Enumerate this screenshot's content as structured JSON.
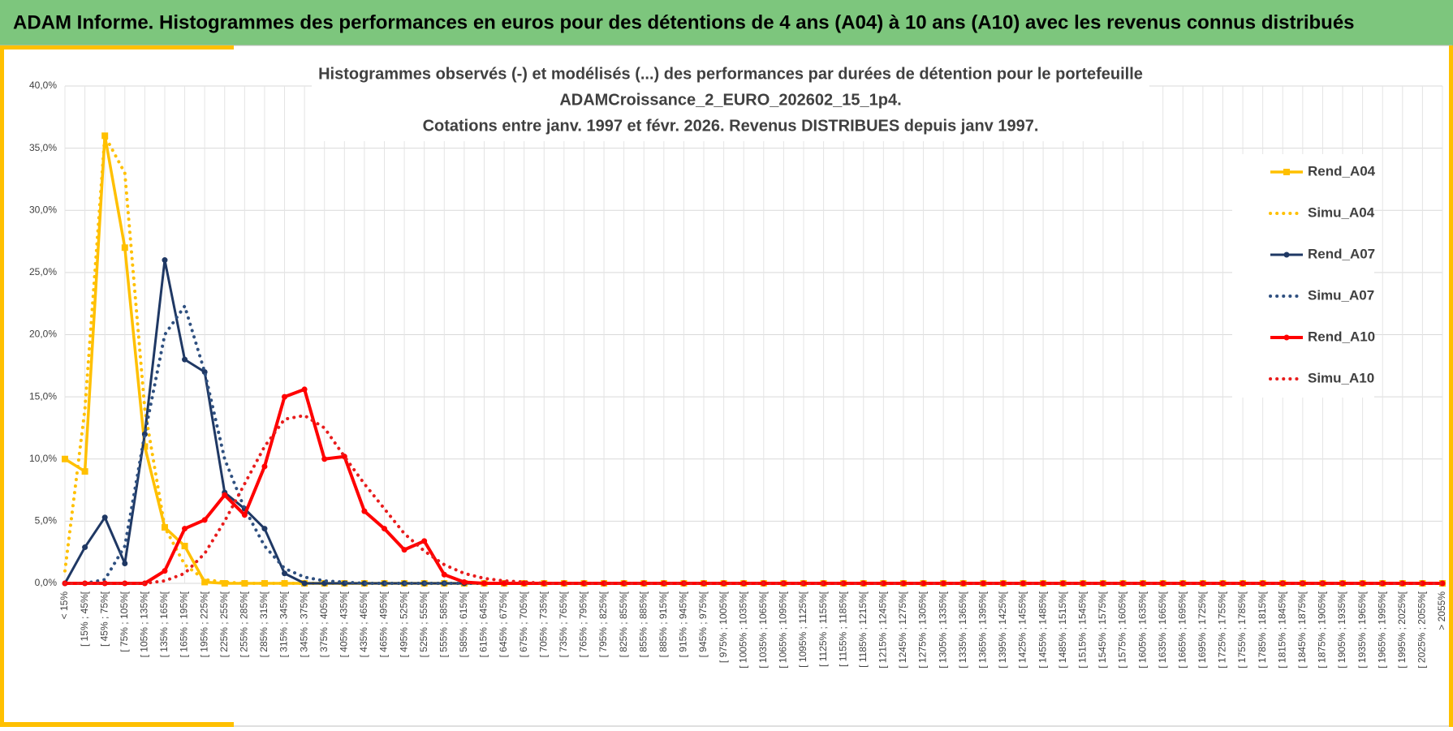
{
  "header": "ADAM Informe. Histogrammes des performances en euros pour des détentions de 4 ans (A04) à 10 ans (A10) avec les revenus connus distribués",
  "chart_data": {
    "type": "line",
    "title_lines": [
      "Histogrammes observés (-) et modélisés (...) des performances par durées de détention pour le portefeuille",
      "ADAMCroissance_2_EURO_202602_15_1p4.",
      "Cotations entre janv. 1997 et févr. 2026. Revenus DISTRIBUES depuis janv 1997."
    ],
    "categories": [
      "< 15%",
      "[ 15% ; 45%[",
      "[ 45% ; 75%[",
      "[ 75% ; 105%[",
      "[ 105% ; 135%[",
      "[ 135% ; 165%[",
      "[ 165% ; 195%[",
      "[ 195% ; 225%[",
      "[ 225% ; 255%[",
      "[ 255% ; 285%[",
      "[ 285% ; 315%[",
      "[ 315% ; 345%[",
      "[ 345% ; 375%[",
      "[ 375% ; 405%[",
      "[ 405% ; 435%[",
      "[ 435% ; 465%[",
      "[ 465% ; 495%[",
      "[ 495% ; 525%[",
      "[ 525% ; 555%[",
      "[ 555% ; 585%[",
      "[ 585% ; 615%[",
      "[ 615% ; 645%[",
      "[ 645% ; 675%[",
      "[ 675% ; 705%[",
      "[ 705% ; 735%[",
      "[ 735% ; 765%[",
      "[ 765% ; 795%[",
      "[ 795% ; 825%[",
      "[ 825% ; 855%[",
      "[ 855% ; 885%[",
      "[ 885% ; 915%[",
      "[ 915% ; 945%[",
      "[ 945% ; 975%[",
      "[ 975% ; 1005%[",
      "[ 1005% ; 1035%[",
      "[ 1035% ; 1065%[",
      "[ 1065% ; 1095%[",
      "[ 1095% ; 1125%[",
      "[ 1125% ; 1155%[",
      "[ 1155% ; 1185%[",
      "[ 1185% ; 1215%[",
      "[ 1215% ; 1245%[",
      "[ 1245% ; 1275%[",
      "[ 1275% ; 1305%[",
      "[ 1305% ; 1335%[",
      "[ 1335% ; 1365%[",
      "[ 1365% ; 1395%[",
      "[ 1395% ; 1425%[",
      "[ 1425% ; 1455%[",
      "[ 1455% ; 1485%[",
      "[ 1485% ; 1515%[",
      "[ 1515% ; 1545%[",
      "[ 1545% ; 1575%[",
      "[ 1575% ; 1605%[",
      "[ 1605% ; 1635%[",
      "[ 1635% ; 1665%[",
      "[ 1665% ; 1695%[",
      "[ 1695% ; 1725%[",
      "[ 1725% ; 1755%[",
      "[ 1755% ; 1785%[",
      "[ 1785% ; 1815%[",
      "[ 1815% ; 1845%[",
      "[ 1845% ; 1875%[",
      "[ 1875% ; 1905%[",
      "[ 1905% ; 1935%[",
      "[ 1935% ; 1965%[",
      "[ 1965% ; 1995%[",
      "[ 1995% ; 2025%[",
      "[ 2025% ; 2055%[",
      "> 2055%"
    ],
    "series": [
      {
        "name": "Rend_A04",
        "color": "#ffc000",
        "line_style": "solid",
        "line_width": 3.5,
        "marker": "square",
        "values": [
          10,
          9,
          36,
          27,
          11,
          4.5,
          3,
          0.1,
          0,
          0,
          0,
          0,
          0,
          0,
          0,
          0,
          0,
          0,
          0,
          0,
          0,
          0,
          0,
          0,
          0,
          0,
          0,
          0,
          0,
          0,
          0,
          0,
          0,
          0,
          0,
          0,
          0,
          0,
          0,
          0,
          0,
          0,
          0,
          0,
          0,
          0,
          0,
          0,
          0,
          0,
          0,
          0,
          0,
          0,
          0,
          0,
          0,
          0,
          0,
          0,
          0,
          0,
          0,
          0,
          0,
          0,
          0,
          0,
          0,
          0
        ]
      },
      {
        "name": "Simu_A04",
        "color": "#ffc000",
        "line_style": "dotted",
        "line_width": 4,
        "values": [
          1,
          14,
          36,
          33,
          14,
          4.5,
          1.5,
          0.3,
          0.1,
          0,
          0,
          0,
          0,
          0,
          0,
          0,
          0,
          0,
          0,
          0,
          0,
          0,
          0,
          0,
          0,
          0,
          0,
          0,
          0,
          0,
          0,
          0,
          0,
          0,
          0,
          0,
          0,
          0,
          0,
          0,
          0,
          0,
          0,
          0,
          0,
          0,
          0,
          0,
          0,
          0,
          0,
          0,
          0,
          0,
          0,
          0,
          0,
          0,
          0,
          0,
          0,
          0,
          0,
          0,
          0,
          0,
          0,
          0,
          0,
          0
        ]
      },
      {
        "name": "Rend_A07",
        "color": "#1f3864",
        "line_style": "solid",
        "line_width": 3,
        "marker": "circle",
        "values": [
          0,
          2.9,
          5.3,
          1.6,
          12,
          26,
          18,
          17,
          7.3,
          6,
          4.4,
          0.8,
          0,
          0,
          0,
          0,
          0,
          0,
          0,
          0,
          0,
          0,
          0,
          0,
          0,
          0,
          0,
          0,
          0,
          0,
          0,
          0,
          0,
          0,
          0,
          0,
          0,
          0,
          0,
          0,
          0,
          0,
          0,
          0,
          0,
          0,
          0,
          0,
          0,
          0,
          0,
          0,
          0,
          0,
          0,
          0,
          0,
          0,
          0,
          0,
          0,
          0,
          0,
          0,
          0,
          0,
          0,
          0,
          0,
          0
        ]
      },
      {
        "name": "Simu_A07",
        "color": "#2f5080",
        "line_style": "dotted",
        "line_width": 4,
        "values": [
          0,
          0,
          0.3,
          3,
          12,
          20,
          22.3,
          17,
          10,
          6,
          3,
          1.2,
          0.5,
          0.2,
          0.1,
          0,
          0,
          0,
          0,
          0,
          0,
          0,
          0,
          0,
          0,
          0,
          0,
          0,
          0,
          0,
          0,
          0,
          0,
          0,
          0,
          0,
          0,
          0,
          0,
          0,
          0,
          0,
          0,
          0,
          0,
          0,
          0,
          0,
          0,
          0,
          0,
          0,
          0,
          0,
          0,
          0,
          0,
          0,
          0,
          0,
          0,
          0,
          0,
          0,
          0,
          0,
          0,
          0,
          0,
          0
        ]
      },
      {
        "name": "Rend_A10",
        "color": "#ff0000",
        "line_style": "solid",
        "line_width": 4,
        "marker": "circle",
        "values": [
          0,
          0,
          0,
          0,
          0,
          1,
          4.4,
          5.1,
          7.1,
          5.5,
          9.4,
          15,
          15.6,
          10,
          10.2,
          5.8,
          4.4,
          2.7,
          3.4,
          0.7,
          0.1,
          0,
          0,
          0,
          0,
          0,
          0,
          0,
          0,
          0,
          0,
          0,
          0,
          0,
          0,
          0,
          0,
          0,
          0,
          0,
          0,
          0,
          0,
          0,
          0,
          0,
          0,
          0,
          0,
          0,
          0,
          0,
          0,
          0,
          0,
          0,
          0,
          0,
          0,
          0,
          0,
          0,
          0,
          0,
          0,
          0,
          0,
          0,
          0,
          0
        ]
      },
      {
        "name": "Simu_A10",
        "color": "#e81c1c",
        "line_style": "dotted",
        "line_width": 4,
        "values": [
          0,
          0,
          0,
          0,
          0,
          0.2,
          0.8,
          2.4,
          5,
          8,
          11,
          13.2,
          13.5,
          12.5,
          10.2,
          8,
          6,
          4,
          2.6,
          1.5,
          0.8,
          0.4,
          0.2,
          0.1,
          0,
          0,
          0,
          0,
          0,
          0,
          0,
          0,
          0,
          0,
          0,
          0,
          0,
          0,
          0,
          0,
          0,
          0,
          0,
          0,
          0,
          0,
          0,
          0,
          0,
          0,
          0,
          0,
          0,
          0,
          0,
          0,
          0,
          0,
          0,
          0,
          0,
          0,
          0,
          0,
          0,
          0,
          0,
          0,
          0,
          0
        ]
      }
    ],
    "ylim": [
      0,
      40
    ],
    "yticks": [
      {
        "value": 0,
        "label": "0,0%"
      },
      {
        "value": 5,
        "label": "5,0%"
      },
      {
        "value": 10,
        "label": "10,0%"
      },
      {
        "value": 15,
        "label": "15,0%"
      },
      {
        "value": 20,
        "label": "20,0%"
      },
      {
        "value": 25,
        "label": "25,0%"
      },
      {
        "value": 30,
        "label": "30,0%"
      },
      {
        "value": 35,
        "label": "35,0%"
      },
      {
        "value": 40,
        "label": "40,0%"
      }
    ],
    "grid": true,
    "legend": "right"
  }
}
